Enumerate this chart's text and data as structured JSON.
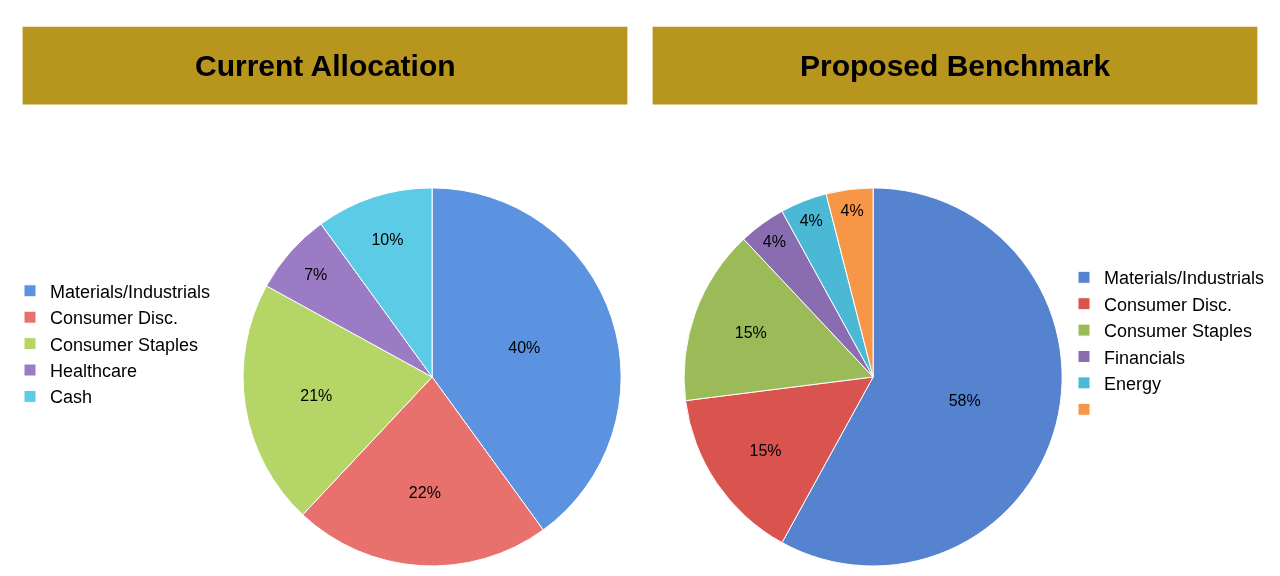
{
  "chart_data": [
    {
      "type": "pie",
      "title": "Current Allocation",
      "categories": [
        "Materials/Industrials",
        "Consumer Disc.",
        "Consumer Staples",
        "Healthcare",
        "Cash"
      ],
      "values": [
        40,
        22,
        21,
        7,
        10
      ],
      "value_labels": [
        "40%",
        "22%",
        "21%",
        "7%",
        "10%"
      ],
      "colors": [
        "#5b93e0",
        "#e8716d",
        "#b5d667",
        "#9b7bc4",
        "#5ccbe6"
      ],
      "legend": "left"
    },
    {
      "type": "pie",
      "title": "Proposed Benchmark",
      "categories": [
        "Materials/Industrials",
        "Consumer Disc.",
        "Consumer Staples",
        "Financials",
        "Energy",
        null
      ],
      "values": [
        58,
        15,
        15,
        4,
        4,
        4
      ],
      "value_labels": [
        "58%",
        "15%",
        "15%",
        "4%",
        "4%",
        "4%"
      ],
      "colors": [
        "#5583d0",
        "#d9534f",
        "#9bbb59",
        "#8a6db0",
        "#4bb8d6",
        "#f79646"
      ],
      "legend": "right"
    }
  ]
}
